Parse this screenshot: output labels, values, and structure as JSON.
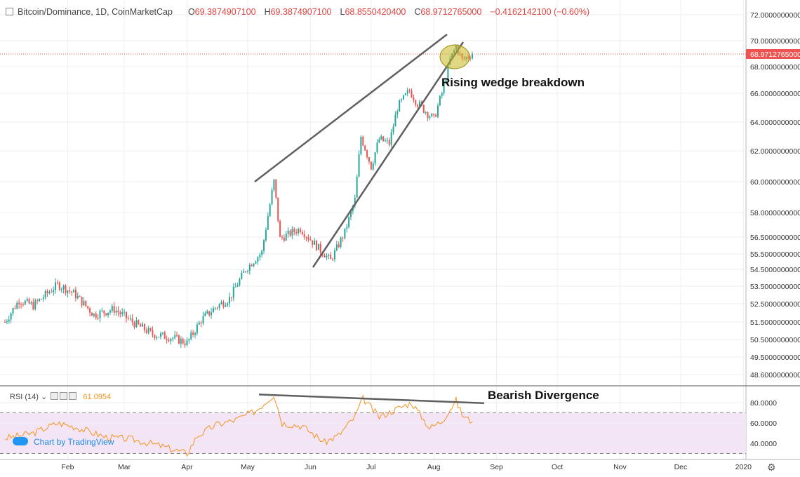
{
  "header": {
    "symbol": "Bitcoin/Dominance, 1D, CoinMarketCap",
    "open_label": "O",
    "open": "69.3874907100",
    "high_label": "H",
    "high": "69.3874907100",
    "low_label": "L",
    "low": "68.8550420400",
    "close_label": "C",
    "close": "68.9712765000",
    "change": "−0.4162142100 (−0.60%)"
  },
  "price_tag": "68.9712765000",
  "rsi_header": {
    "label": "RSI (14)",
    "value": "61.0954"
  },
  "branding": "Chart by TradingView",
  "annotations": {
    "wedge": "Rising wedge breakdown",
    "divergence": "Bearish Divergence"
  },
  "colors": {
    "up": "#26a69a",
    "down": "#ef5350",
    "rsi": "#f7931e",
    "rsi_band": "#f3e5f5",
    "trendline": "#5f5f5f",
    "highlight": "#c8b820"
  },
  "chart_data": [
    {
      "type": "candlestick",
      "title": "Bitcoin/Dominance, 1D, CoinMarketCap",
      "x_ticks": [
        "Feb",
        "Mar",
        "Apr",
        "May",
        "Jun",
        "Jul",
        "Aug",
        "Sep",
        "Oct",
        "Nov",
        "Dec",
        "2020"
      ],
      "y_ticks": [
        "72.0000000000",
        "70.0000000000",
        "68.0000000000",
        "66.0000000000",
        "64.0000000000",
        "62.0000000000",
        "60.0000000000",
        "58.0000000000",
        "56.5000000000",
        "55.5000000000",
        "54.5000000000",
        "53.5000000000",
        "52.5000000000",
        "51.5000000000",
        "50.5000000000",
        "49.5000000000",
        "48.6000000000"
      ],
      "close_anchors": [
        [
          "Jan 01",
          51.5
        ],
        [
          "Jan 08",
          52.7
        ],
        [
          "Jan 15",
          52.4
        ],
        [
          "Jan 22",
          53.1
        ],
        [
          "Jan 27",
          53.6
        ],
        [
          "Feb 04",
          53.1
        ],
        [
          "Feb 14",
          51.9
        ],
        [
          "Feb 24",
          52.2
        ],
        [
          "Mar 05",
          51.5
        ],
        [
          "Mar 15",
          50.8
        ],
        [
          "Mar 25",
          50.6
        ],
        [
          "Apr 01",
          50.3
        ],
        [
          "Apr 08",
          51.6
        ],
        [
          "Apr 15",
          52.3
        ],
        [
          "Apr 22",
          52.8
        ],
        [
          "Apr 30",
          54.5
        ],
        [
          "May 08",
          55.6
        ],
        [
          "May 14",
          60.0
        ],
        [
          "May 17",
          56.4
        ],
        [
          "May 23",
          56.8
        ],
        [
          "May 27",
          57.0
        ],
        [
          "Jun 03",
          56.1
        ],
        [
          "Jun 11",
          55.1
        ],
        [
          "Jun 18",
          56.8
        ],
        [
          "Jun 23",
          58.8
        ],
        [
          "Jun 26",
          63.0
        ],
        [
          "Jul 01",
          61.0
        ],
        [
          "Jul 05",
          62.8
        ],
        [
          "Jul 10",
          62.5
        ],
        [
          "Jul 14",
          65.0
        ],
        [
          "Jul 20",
          66.2
        ],
        [
          "Jul 24",
          65.3
        ],
        [
          "Aug 01",
          64.2
        ],
        [
          "Aug 05",
          66.0
        ],
        [
          "Aug 09",
          68.5
        ],
        [
          "Aug 12",
          69.6
        ],
        [
          "Aug 15",
          68.5
        ],
        [
          "Aug 20",
          69.0
        ]
      ],
      "last_close": 68.9712765,
      "annotation": "Rising wedge breakdown"
    },
    {
      "type": "line",
      "title": "RSI (14)",
      "y_ticks": [
        "80.0000",
        "60.0000",
        "40.0000"
      ],
      "band": [
        30,
        70
      ],
      "anchors": [
        [
          "Jan 01",
          45
        ],
        [
          "Jan 15",
          50
        ],
        [
          "Jan 27",
          60
        ],
        [
          "Feb 05",
          56
        ],
        [
          "Feb 20",
          46
        ],
        [
          "Mar 05",
          44
        ],
        [
          "Mar 20",
          37
        ],
        [
          "Apr 01",
          30
        ],
        [
          "Apr 06",
          47
        ],
        [
          "Apr 15",
          58
        ],
        [
          "Apr 25",
          63
        ],
        [
          "May 05",
          72
        ],
        [
          "May 14",
          88
        ],
        [
          "May 18",
          60
        ],
        [
          "May 28",
          57
        ],
        [
          "Jun 08",
          41
        ],
        [
          "Jun 15",
          48
        ],
        [
          "Jun 23",
          66
        ],
        [
          "Jun 27",
          84
        ],
        [
          "Jul 05",
          66
        ],
        [
          "Jul 15",
          75
        ],
        [
          "Jul 21",
          80
        ],
        [
          "Jul 30",
          55
        ],
        [
          "Aug 05",
          62
        ],
        [
          "Aug 12",
          82
        ],
        [
          "Aug 15",
          68
        ],
        [
          "Aug 20",
          61
        ]
      ],
      "last_value": 61.0954,
      "annotation": "Bearish Divergence"
    }
  ]
}
